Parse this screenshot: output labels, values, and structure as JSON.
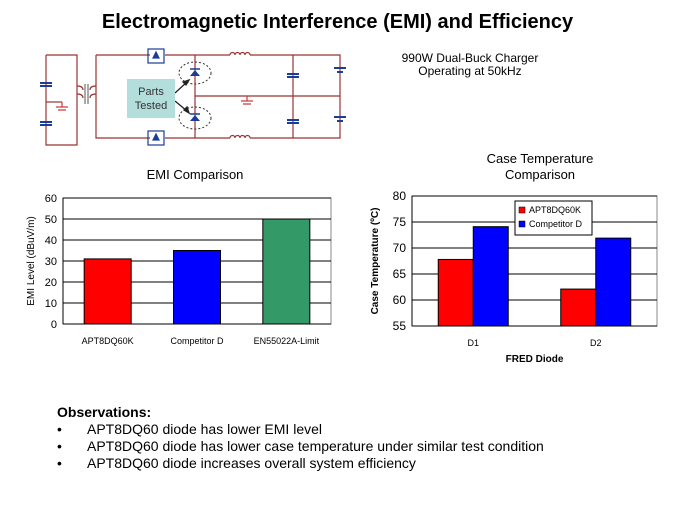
{
  "title": "Electromagnetic Interference (EMI) and Efficiency",
  "circuit": {
    "callout": [
      "Parts",
      "Tested"
    ],
    "caption": [
      "990W Dual-Buck Charger",
      "Operating at 50kHz"
    ]
  },
  "chart_data": [
    {
      "type": "bar",
      "title": "EMI Comparison",
      "ylabel": "EMI Level (dBuV/m)",
      "xlabel": "",
      "categories": [
        "APT8DQ60K",
        "Competitor D",
        "EN55022A-Limit"
      ],
      "values": [
        31,
        35,
        50
      ],
      "colors": [
        "#ff0000",
        "#0000ff",
        "#339966"
      ],
      "ylim": [
        0,
        60
      ],
      "yticks": [
        0,
        10,
        20,
        30,
        40,
        50,
        60
      ],
      "grid": true
    },
    {
      "type": "bar",
      "title": "Case Temperature Comparison",
      "title_lines": [
        "Case Temperature",
        "Comparison"
      ],
      "ylabel": "Case Temperature (ºC)",
      "xlabel": "FRED Diode",
      "categories": [
        "D1",
        "D2"
      ],
      "series": [
        {
          "name": "APT8DQ60K",
          "values": [
            67.8,
            62.1
          ],
          "color": "#ff0000"
        },
        {
          "name": "Competitor D",
          "values": [
            74.1,
            71.9
          ],
          "color": "#0000ff"
        }
      ],
      "ylim": [
        55,
        80
      ],
      "yticks": [
        55,
        60,
        65,
        70,
        75,
        80
      ],
      "grid": true,
      "legend": "top-center"
    }
  ],
  "observations": {
    "heading": "Observations:",
    "bullet": "•",
    "items": [
      "APT8DQ60 diode has lower  EMI level",
      "APT8DQ60 diode has lower  case temperature under similar  test condition",
      "APT8DQ60 diode increases overall  system efficiency"
    ]
  }
}
